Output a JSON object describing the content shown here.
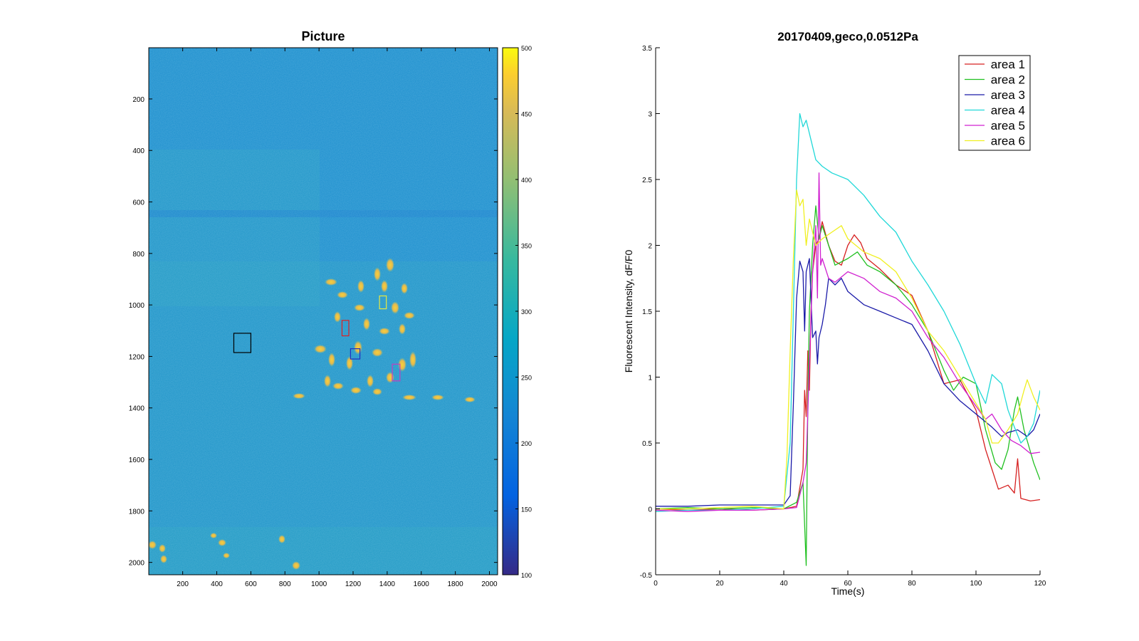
{
  "figure": {
    "left_panel": {
      "title": "Picture",
      "x_ticks": [
        "200",
        "400",
        "600",
        "800",
        "1000",
        "1200",
        "1400",
        "1600",
        "1800",
        "2000"
      ],
      "y_ticks": [
        "200",
        "400",
        "600",
        "800",
        "1000",
        "1200",
        "1400",
        "1600",
        "1800",
        "2000"
      ],
      "colorbar_ticks": [
        "100",
        "150",
        "200",
        "250",
        "300",
        "350",
        "400",
        "450",
        "500"
      ]
    },
    "right_panel": {
      "title": "20170409,geco,0.0512Pa",
      "xlabel": "Time(s)",
      "ylabel": "Fluorescent Intensity, dF/F0",
      "x_ticks": [
        "0",
        "20",
        "40",
        "60",
        "80",
        "100",
        "120"
      ],
      "y_ticks": [
        "-0.5",
        "0",
        "0.5",
        "1",
        "1.5",
        "2",
        "2.5",
        "3",
        "3.5"
      ],
      "legend": [
        "area 1",
        "area 2",
        "area 3",
        "area 4",
        "area 5",
        "area 6"
      ]
    }
  },
  "chart_data": [
    {
      "type": "heatmap",
      "title": "Picture",
      "xlim": [
        1,
        2048
      ],
      "ylim": [
        2048,
        1
      ],
      "colormap": "parula",
      "clim": [
        100,
        500
      ],
      "colorbar_ticks": [
        100,
        150,
        200,
        250,
        300,
        350,
        400,
        450,
        500
      ],
      "roi_boxes": [
        {
          "color": "#000000",
          "x": [
            500,
            600
          ],
          "y": [
            1110,
            1185
          ]
        },
        {
          "color": "#e02020",
          "x": [
            1135,
            1175
          ],
          "y": [
            1060,
            1120
          ]
        },
        {
          "color": "#2030c0",
          "x": [
            1185,
            1240
          ],
          "y": [
            1170,
            1210
          ]
        },
        {
          "color": "#e8e840",
          "x": [
            1355,
            1395
          ],
          "y": [
            965,
            1015
          ]
        },
        {
          "color": "#c040c0",
          "x": [
            1430,
            1475
          ],
          "y": [
            1230,
            1295
          ]
        }
      ]
    },
    {
      "type": "line",
      "title": "20170409,geco,0.0512Pa",
      "xlabel": "Time(s)",
      "ylabel": "Fluorescent Intensity, dF/F0",
      "xlim": [
        0,
        120
      ],
      "ylim": [
        -0.5,
        3.5
      ],
      "legend_position": "top-right",
      "series": [
        {
          "name": "area 1",
          "color": "#d62020",
          "points": [
            [
              0,
              0
            ],
            [
              10,
              -0.01
            ],
            [
              20,
              0.0
            ],
            [
              30,
              -0.01
            ],
            [
              40,
              0.0
            ],
            [
              44,
              0.02
            ],
            [
              46,
              0.3
            ],
            [
              46.5,
              0.9
            ],
            [
              47,
              0.7
            ],
            [
              47.5,
              1.2
            ],
            [
              48,
              0.9
            ],
            [
              48.5,
              1.5
            ],
            [
              49,
              1.8
            ],
            [
              50,
              2.0
            ],
            [
              51,
              2.05
            ],
            [
              52,
              2.18
            ],
            [
              54,
              2.0
            ],
            [
              56,
              1.88
            ],
            [
              58,
              1.85
            ],
            [
              60,
              2.0
            ],
            [
              62,
              2.08
            ],
            [
              64,
              2.02
            ],
            [
              66,
              1.9
            ],
            [
              70,
              1.82
            ],
            [
              75,
              1.7
            ],
            [
              80,
              1.62
            ],
            [
              85,
              1.35
            ],
            [
              90,
              0.95
            ],
            [
              95,
              0.98
            ],
            [
              100,
              0.75
            ],
            [
              103,
              0.45
            ],
            [
              105,
              0.3
            ],
            [
              107,
              0.15
            ],
            [
              110,
              0.18
            ],
            [
              112,
              0.12
            ],
            [
              113,
              0.38
            ],
            [
              114,
              0.08
            ],
            [
              117,
              0.06
            ],
            [
              120,
              0.07
            ]
          ]
        },
        {
          "name": "area 2",
          "color": "#20c020",
          "points": [
            [
              0,
              0
            ],
            [
              10,
              0.01
            ],
            [
              20,
              0.0
            ],
            [
              30,
              0.01
            ],
            [
              40,
              0.0
            ],
            [
              44,
              0.05
            ],
            [
              46,
              0.2
            ],
            [
              47,
              -0.43
            ],
            [
              47.5,
              0.8
            ],
            [
              48,
              1.5
            ],
            [
              49,
              2.0
            ],
            [
              50,
              2.3
            ],
            [
              51,
              2.05
            ],
            [
              52,
              2.15
            ],
            [
              54,
              2.0
            ],
            [
              56,
              1.85
            ],
            [
              60,
              1.9
            ],
            [
              63,
              1.95
            ],
            [
              66,
              1.85
            ],
            [
              70,
              1.8
            ],
            [
              75,
              1.7
            ],
            [
              80,
              1.55
            ],
            [
              85,
              1.35
            ],
            [
              90,
              1.05
            ],
            [
              93,
              0.9
            ],
            [
              96,
              1.0
            ],
            [
              100,
              0.95
            ],
            [
              103,
              0.6
            ],
            [
              106,
              0.35
            ],
            [
              108,
              0.3
            ],
            [
              110,
              0.45
            ],
            [
              112,
              0.75
            ],
            [
              113,
              0.85
            ],
            [
              115,
              0.6
            ],
            [
              118,
              0.35
            ],
            [
              120,
              0.22
            ]
          ]
        },
        {
          "name": "area 3",
          "color": "#1a1aa8",
          "points": [
            [
              0,
              0.02
            ],
            [
              10,
              0.02
            ],
            [
              20,
              0.03
            ],
            [
              30,
              0.03
            ],
            [
              40,
              0.03
            ],
            [
              42,
              0.1
            ],
            [
              43,
              0.8
            ],
            [
              44,
              1.6
            ],
            [
              45,
              1.88
            ],
            [
              46,
              1.8
            ],
            [
              46.5,
              1.35
            ],
            [
              47,
              1.8
            ],
            [
              48,
              1.9
            ],
            [
              49,
              1.3
            ],
            [
              50,
              1.35
            ],
            [
              50.5,
              1.1
            ],
            [
              51,
              1.3
            ],
            [
              52,
              1.4
            ],
            [
              53,
              1.55
            ],
            [
              54,
              1.75
            ],
            [
              56,
              1.7
            ],
            [
              58,
              1.75
            ],
            [
              60,
              1.65
            ],
            [
              65,
              1.55
            ],
            [
              70,
              1.5
            ],
            [
              75,
              1.45
            ],
            [
              80,
              1.4
            ],
            [
              85,
              1.2
            ],
            [
              90,
              0.95
            ],
            [
              95,
              0.82
            ],
            [
              100,
              0.72
            ],
            [
              105,
              0.62
            ],
            [
              108,
              0.55
            ],
            [
              110,
              0.58
            ],
            [
              113,
              0.6
            ],
            [
              116,
              0.55
            ],
            [
              118,
              0.6
            ],
            [
              120,
              0.72
            ]
          ]
        },
        {
          "name": "area 4",
          "color": "#20d8d8",
          "points": [
            [
              0,
              -0.02
            ],
            [
              10,
              -0.01
            ],
            [
              20,
              -0.01
            ],
            [
              30,
              0.0
            ],
            [
              40,
              0.02
            ],
            [
              42,
              0.5
            ],
            [
              43,
              1.5
            ],
            [
              44,
              2.5
            ],
            [
              45,
              3.0
            ],
            [
              46,
              2.9
            ],
            [
              47,
              2.95
            ],
            [
              48,
              2.85
            ],
            [
              49,
              2.75
            ],
            [
              50,
              2.65
            ],
            [
              52,
              2.6
            ],
            [
              55,
              2.55
            ],
            [
              60,
              2.5
            ],
            [
              65,
              2.38
            ],
            [
              70,
              2.22
            ],
            [
              75,
              2.1
            ],
            [
              80,
              1.88
            ],
            [
              85,
              1.7
            ],
            [
              90,
              1.5
            ],
            [
              95,
              1.25
            ],
            [
              100,
              0.95
            ],
            [
              103,
              0.8
            ],
            [
              105,
              1.02
            ],
            [
              108,
              0.95
            ],
            [
              110,
              0.75
            ],
            [
              112,
              0.62
            ],
            [
              114,
              0.5
            ],
            [
              116,
              0.55
            ],
            [
              118,
              0.65
            ],
            [
              120,
              0.9
            ]
          ]
        },
        {
          "name": "area 5",
          "color": "#d020d0",
          "points": [
            [
              0,
              -0.01
            ],
            [
              10,
              -0.02
            ],
            [
              20,
              -0.01
            ],
            [
              30,
              -0.01
            ],
            [
              40,
              0.0
            ],
            [
              44,
              0.01
            ],
            [
              46,
              0.2
            ],
            [
              47,
              0.35
            ],
            [
              48,
              1.1
            ],
            [
              49,
              1.8
            ],
            [
              50,
              2.15
            ],
            [
              50.5,
              1.6
            ],
            [
              51,
              2.55
            ],
            [
              51.5,
              1.85
            ],
            [
              52,
              1.9
            ],
            [
              54,
              1.75
            ],
            [
              56,
              1.72
            ],
            [
              60,
              1.8
            ],
            [
              65,
              1.75
            ],
            [
              70,
              1.65
            ],
            [
              75,
              1.6
            ],
            [
              80,
              1.5
            ],
            [
              85,
              1.3
            ],
            [
              90,
              1.15
            ],
            [
              95,
              0.95
            ],
            [
              100,
              0.78
            ],
            [
              103,
              0.68
            ],
            [
              105,
              0.72
            ],
            [
              108,
              0.6
            ],
            [
              111,
              0.52
            ],
            [
              114,
              0.48
            ],
            [
              117,
              0.42
            ],
            [
              120,
              0.43
            ]
          ]
        },
        {
          "name": "area 6",
          "color": "#f0f020",
          "points": [
            [
              0,
              0.0
            ],
            [
              10,
              0.0
            ],
            [
              20,
              0.01
            ],
            [
              30,
              0.02
            ],
            [
              40,
              0.0
            ],
            [
              41,
              0.4
            ],
            [
              42,
              1.2
            ],
            [
              43,
              1.9
            ],
            [
              44,
              2.42
            ],
            [
              45,
              2.3
            ],
            [
              46,
              2.35
            ],
            [
              47,
              2.0
            ],
            [
              48,
              2.2
            ],
            [
              49,
              2.1
            ],
            [
              50,
              2.0
            ],
            [
              52,
              2.05
            ],
            [
              55,
              2.1
            ],
            [
              58,
              2.15
            ],
            [
              60,
              2.05
            ],
            [
              65,
              1.95
            ],
            [
              70,
              1.9
            ],
            [
              75,
              1.8
            ],
            [
              80,
              1.6
            ],
            [
              85,
              1.35
            ],
            [
              90,
              1.2
            ],
            [
              95,
              1.0
            ],
            [
              100,
              0.8
            ],
            [
              103,
              0.68
            ],
            [
              105,
              0.5
            ],
            [
              107,
              0.5
            ],
            [
              110,
              0.6
            ],
            [
              113,
              0.72
            ],
            [
              115,
              0.9
            ],
            [
              116,
              0.98
            ],
            [
              118,
              0.85
            ],
            [
              120,
              0.75
            ]
          ]
        }
      ]
    }
  ]
}
